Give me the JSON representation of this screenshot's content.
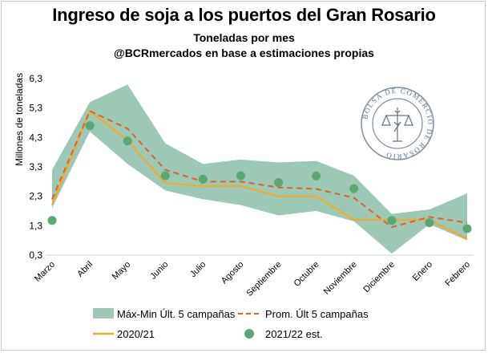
{
  "chart_data": {
    "type": "line",
    "title": "Ingreso de soja a los puertos del Gran Rosario",
    "subtitle1": "Toneladas por mes",
    "subtitle2": "@BCRmercados en base a estimaciones propias",
    "ylabel": "Millones de toneladas",
    "xlabel": "",
    "ylim": [
      0.3,
      6.3
    ],
    "yticks": [
      "6,3",
      "5,3",
      "4,3",
      "3,3",
      "2,3",
      "1,3",
      "0,3"
    ],
    "ytick_values": [
      6.3,
      5.3,
      4.3,
      3.3,
      2.3,
      1.3,
      0.3
    ],
    "categories": [
      "Marzo",
      "Abril",
      "Mayo",
      "Junio",
      "Julio",
      "Agosto",
      "Septiembre",
      "Octubre",
      "Noviembre",
      "Diciembre",
      "Enero",
      "Febrero"
    ],
    "band": {
      "name": "Máx-Min Últ. 5 campañas",
      "color": "#9dc8b6",
      "max": [
        3.2,
        5.5,
        6.1,
        4.1,
        3.4,
        3.55,
        3.45,
        3.5,
        3.0,
        1.7,
        1.85,
        2.4
      ],
      "min": [
        1.9,
        4.5,
        3.4,
        2.5,
        2.2,
        2.0,
        1.65,
        1.8,
        1.45,
        0.35,
        1.35,
        0.8
      ]
    },
    "series": [
      {
        "name": "Prom. Últ 5 campañas",
        "style": "dashed",
        "color": "#e06028",
        "values": [
          2.2,
          5.2,
          4.6,
          3.2,
          2.8,
          2.8,
          2.6,
          2.55,
          2.25,
          1.25,
          1.6,
          1.4
        ]
      },
      {
        "name": "2020/21",
        "style": "solid",
        "color": "#f0a830",
        "values": [
          2.0,
          5.2,
          4.2,
          2.75,
          2.65,
          2.65,
          2.3,
          2.3,
          1.5,
          1.5,
          1.5,
          0.85
        ]
      },
      {
        "name": "2021/22 est.",
        "style": "markers",
        "color": "#5aa774",
        "values": [
          1.48,
          4.7,
          4.18,
          3.0,
          2.88,
          3.0,
          2.77,
          2.99,
          2.56,
          1.48,
          1.4,
          1.2
        ]
      }
    ],
    "logo_text": "BOLSA DE COMERCIO DE ROSARIO"
  }
}
